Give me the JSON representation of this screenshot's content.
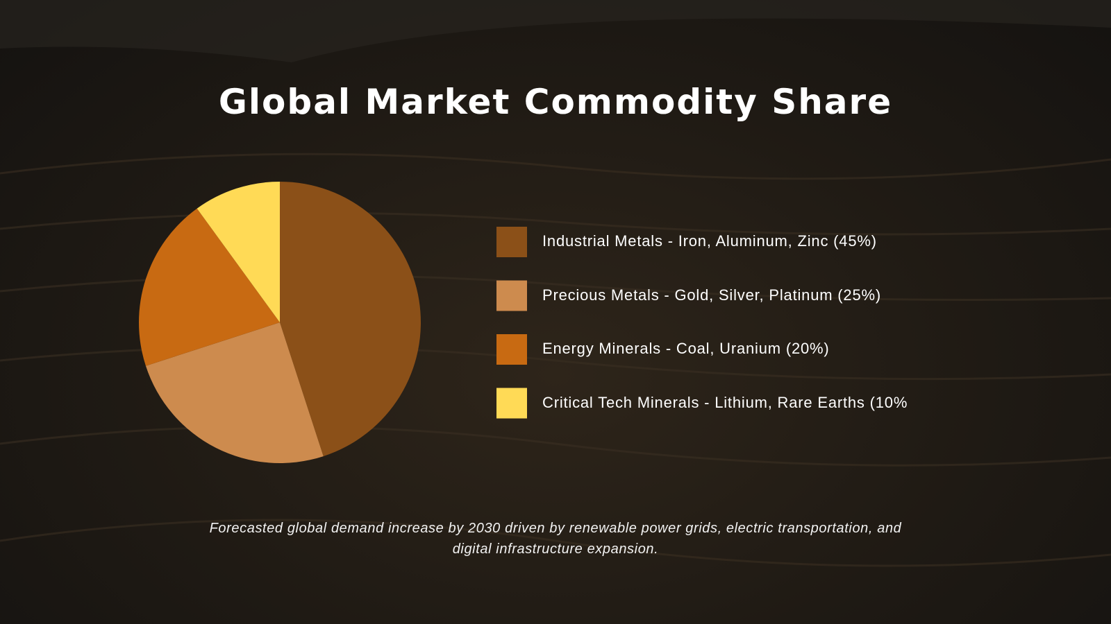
{
  "chart_data": {
    "type": "pie",
    "title": "Global Market Commodity Share",
    "categories": [
      "Industrial Metals - Iron, Aluminum, Zinc (45%)",
      "Precious Metals - Gold, Silver, Platinum (25%)",
      "Energy Minerals - Coal, Uranium (20%)",
      "Critical Tech Minerals - Lithium, Rare Earths (10%"
    ],
    "values": [
      45,
      25,
      20,
      10
    ],
    "colors": [
      "#8b5018",
      "#cd8b4e",
      "#c86a12",
      "#ffda56"
    ],
    "legend": "right",
    "footnote": "Forecasted global demand increase by 2030 driven by renewable power grids, electric transportation, and digital infrastructure expansion."
  }
}
